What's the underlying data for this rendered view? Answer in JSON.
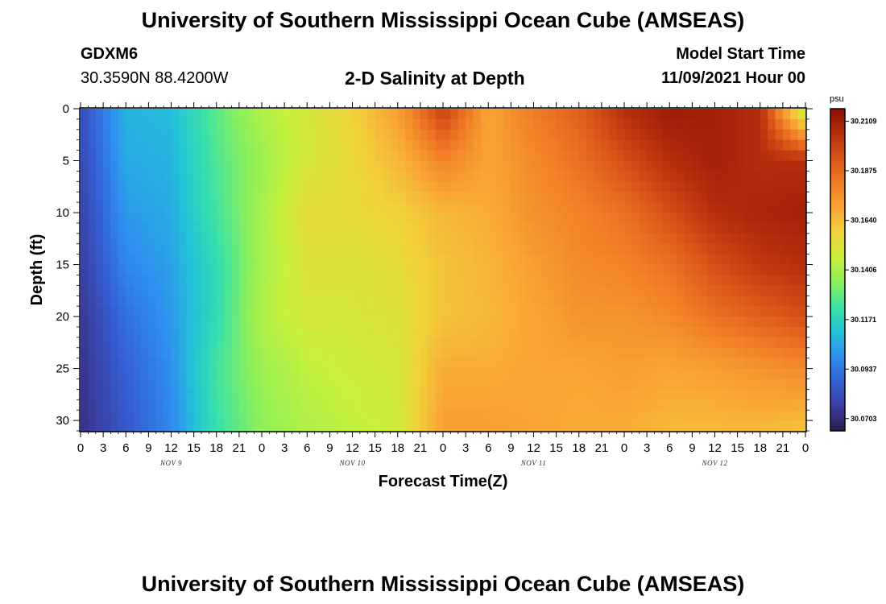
{
  "page": {
    "title": "University of Southern Mississippi Ocean Cube (AMSEAS)",
    "station_id": "GDXM6",
    "station_coords": "30.3590N  88.4200W",
    "model_start_label": "Model Start Time",
    "model_start_value": "11/09/2021 Hour 00",
    "footer_title": "University of Southern Mississippi Ocean Cube (AMSEAS)"
  },
  "chart_data": {
    "type": "heatmap",
    "title": "2-D Salinity at Depth",
    "xlabel": "Forecast Time(Z)",
    "ylabel": "Depth (ft)",
    "x_hours": [
      0,
      96
    ],
    "x_tick_labels": [
      "0",
      "3",
      "6",
      "9",
      "12",
      "15",
      "18",
      "21",
      "0",
      "3",
      "6",
      "9",
      "12",
      "15",
      "18",
      "21",
      "0",
      "3",
      "6",
      "9",
      "12",
      "15",
      "18",
      "21",
      "0",
      "3",
      "6",
      "9",
      "12",
      "15",
      "18",
      "21",
      "0"
    ],
    "date_labels": [
      "NOV 9",
      "NOV 10",
      "NOV 11",
      "NOV 12"
    ],
    "y_ticks": [
      0,
      5,
      10,
      15,
      20,
      25,
      30
    ],
    "ylim": [
      0,
      31
    ],
    "y_inverted": true,
    "colorbar": {
      "unit": "psu",
      "ticks": [
        "30.2109",
        "30.1875",
        "30.1640",
        "30.1406",
        "30.1171",
        "30.0937",
        "30.0703"
      ],
      "range": [
        30.0645,
        30.2168
      ],
      "colors": [
        "#2b1950",
        "#3a3ea0",
        "#3560d6",
        "#2f8ef0",
        "#22c3d8",
        "#3ce2a6",
        "#8cf059",
        "#c8f03c",
        "#f1d23a",
        "#f9a534",
        "#f07d26",
        "#db5418",
        "#b62d0c",
        "#8c1006"
      ]
    },
    "time_hours": [
      0,
      6,
      12,
      18,
      24,
      30,
      36,
      42,
      48,
      54,
      60,
      66,
      72,
      78,
      84,
      90,
      96
    ],
    "depth_ft": [
      0,
      5,
      10,
      15,
      20,
      25,
      31
    ],
    "salinity": [
      [
        30.082,
        30.108,
        30.11,
        30.128,
        30.142,
        30.15,
        30.158,
        30.172,
        30.2,
        30.17,
        30.182,
        30.19,
        30.205,
        30.212,
        30.21,
        30.205,
        30.14
      ],
      [
        30.08,
        30.106,
        30.108,
        30.126,
        30.138,
        30.15,
        30.156,
        30.165,
        30.18,
        30.17,
        30.178,
        30.185,
        30.195,
        30.205,
        30.21,
        30.205,
        30.205
      ],
      [
        30.078,
        30.102,
        30.106,
        30.124,
        30.14,
        30.155,
        30.155,
        30.158,
        30.165,
        30.168,
        30.176,
        30.18,
        30.185,
        30.195,
        30.205,
        30.208,
        30.21
      ],
      [
        30.076,
        30.098,
        30.104,
        30.12,
        30.14,
        30.152,
        30.152,
        30.155,
        30.162,
        30.166,
        30.172,
        30.178,
        30.18,
        30.185,
        30.195,
        30.202,
        30.205
      ],
      [
        30.074,
        30.092,
        30.102,
        30.12,
        30.142,
        30.15,
        30.15,
        30.152,
        30.162,
        30.165,
        30.17,
        30.175,
        30.175,
        30.178,
        30.185,
        30.19,
        30.195
      ],
      [
        30.073,
        30.088,
        30.1,
        30.124,
        30.138,
        30.145,
        30.148,
        30.15,
        30.168,
        30.168,
        30.17,
        30.17,
        30.172,
        30.17,
        30.172,
        30.175,
        30.178
      ],
      [
        30.072,
        30.085,
        30.098,
        30.122,
        30.135,
        30.142,
        30.145,
        30.148,
        30.172,
        30.172,
        30.17,
        30.168,
        30.168,
        30.165,
        30.165,
        30.165,
        30.162
      ]
    ]
  }
}
